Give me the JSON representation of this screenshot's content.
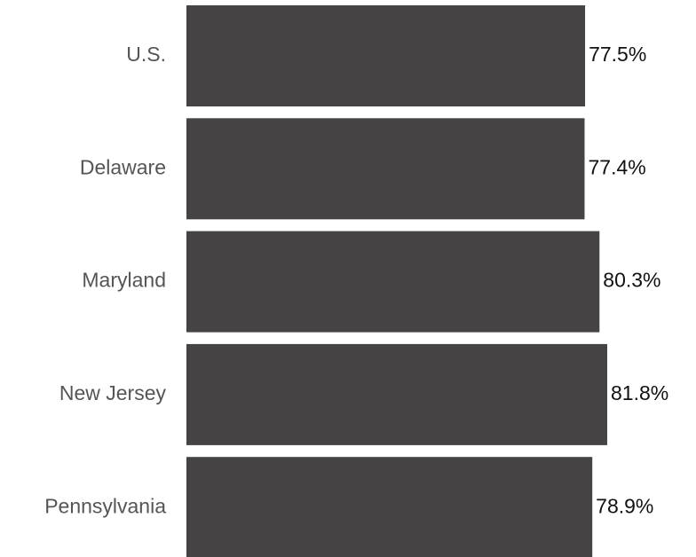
{
  "chart_data": {
    "type": "hbar",
    "categories": [
      "U.S.",
      "Delaware",
      "Maryland",
      "New Jersey",
      "Pennsylvania"
    ],
    "values": [
      77.5,
      77.4,
      80.3,
      81.8,
      78.9
    ],
    "value_labels": [
      "77.5%",
      "77.4%",
      "80.3%",
      "81.8%",
      "78.9%"
    ],
    "color": "#454344",
    "xlim": [
      0,
      90
    ]
  }
}
